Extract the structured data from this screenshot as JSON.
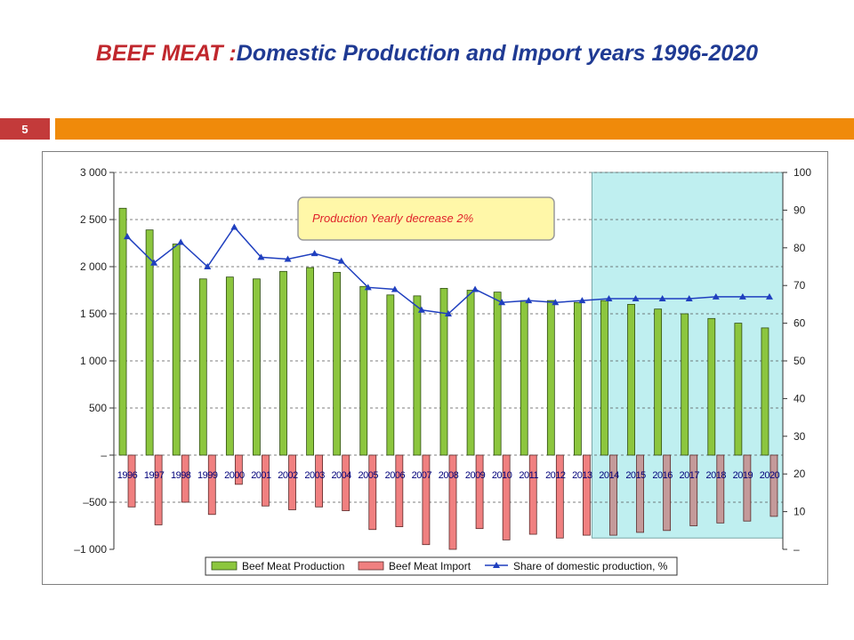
{
  "slide": {
    "title_part1": "BEEF  MEAT :",
    "title_part2": "Domestic Production and Import  years 1996-2020",
    "number": "5"
  },
  "colors": {
    "title_red": "#c0272d",
    "title_blue": "#1f3a93",
    "accent_bar": "#f08a0a",
    "slide_number_bg": "#c33a3a",
    "production_bar": "#8cc63e",
    "import_bar": "#f08080",
    "share_line": "#1f3fbf",
    "highlight_region": "#bfeff0"
  },
  "chart_data": {
    "type": "bar",
    "title": "",
    "xlabel": "",
    "ylabel": "",
    "categories": [
      "1996",
      "1997",
      "1998",
      "1999",
      "2000",
      "2001",
      "2002",
      "2003",
      "2004",
      "2005",
      "2006",
      "2007",
      "2008",
      "2009",
      "2010",
      "2011",
      "2012",
      "2013",
      "2014",
      "2015",
      "2016",
      "2017",
      "2018",
      "2019",
      "2020"
    ],
    "series": [
      {
        "name": "Beef Meat Production",
        "axis": "left",
        "type": "bar",
        "values": [
          2620,
          2390,
          2240,
          1870,
          1890,
          1870,
          1950,
          1990,
          1940,
          1790,
          1700,
          1690,
          1770,
          1750,
          1730,
          1640,
          1640,
          1620,
          1640,
          1600,
          1550,
          1500,
          1450,
          1400,
          1350
        ]
      },
      {
        "name": "Beef Meat Import",
        "axis": "left",
        "type": "bar",
        "values": [
          -550,
          -740,
          -500,
          -630,
          -310,
          -540,
          -580,
          -550,
          -590,
          -790,
          -760,
          -950,
          -1000,
          -780,
          -900,
          -840,
          -880,
          -850,
          -850,
          -820,
          -800,
          -750,
          -720,
          -700,
          -650
        ]
      },
      {
        "name": "Share of domestic production, %",
        "axis": "right",
        "type": "line",
        "values": [
          83,
          76,
          81.5,
          75,
          85.5,
          77.5,
          77,
          78.5,
          76.5,
          69.5,
          69,
          63.5,
          62.5,
          69,
          65.5,
          66,
          65.5,
          66,
          66.5,
          66.5,
          66.5,
          66.5,
          67,
          67,
          67
        ]
      }
    ],
    "y_left": {
      "min": -1000,
      "max": 3000,
      "ticks": [
        "3 000",
        "2 500",
        "2 000",
        "1 500",
        "1 000",
        "500",
        "–",
        "–500",
        "–1 000"
      ]
    },
    "y_right": {
      "min": 0,
      "max": 100,
      "ticks": [
        "100",
        "90",
        "80",
        "70",
        "60",
        "50",
        "40",
        "30",
        "20",
        "10",
        "–"
      ]
    },
    "highlight_years": [
      "2014",
      "2020"
    ],
    "annotation": "Production Yearly decrease   2%",
    "legend_position": "bottom",
    "grid": "horizontal dashed"
  }
}
